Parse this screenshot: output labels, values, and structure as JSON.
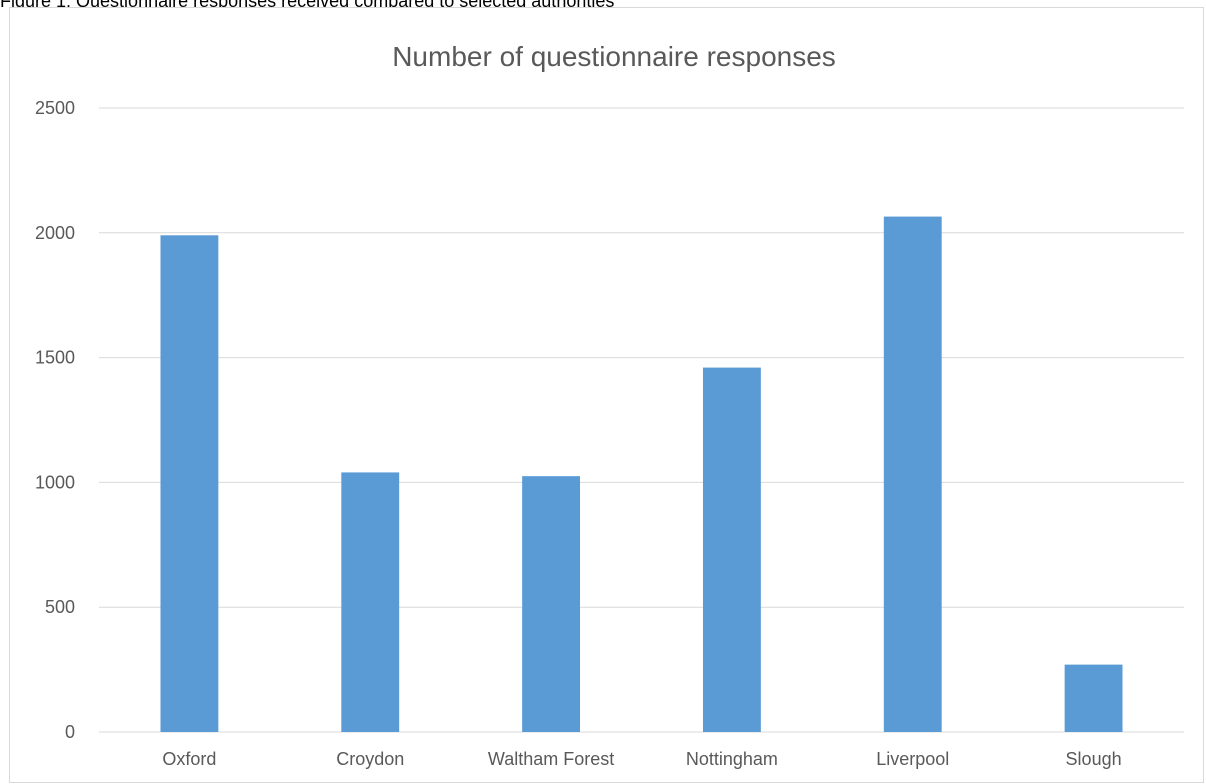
{
  "caption": "Figure 1: Questionnaire responses received compared to selected authorities",
  "chart_data": {
    "type": "bar",
    "title": "Number of questionnaire responses",
    "xlabel": "",
    "ylabel": "",
    "categories": [
      "Oxford",
      "Croydon",
      "Waltham Forest",
      "Nottingham",
      "Liverpool",
      "Slough"
    ],
    "values": [
      1990,
      1040,
      1025,
      1460,
      2065,
      270
    ],
    "ylim": [
      0,
      2500
    ],
    "yticks": [
      0,
      500,
      1000,
      1500,
      2000,
      2500
    ],
    "grid": true,
    "legend": "none",
    "bar_color": "#5b9bd5",
    "grid_color": "#d9d9d9"
  }
}
